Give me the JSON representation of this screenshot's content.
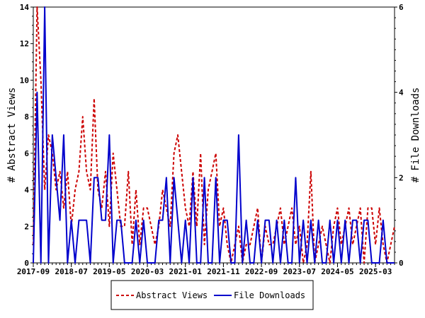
{
  "chart_data": {
    "type": "line",
    "x_labels": [
      "2017-09",
      "2018-07",
      "2019-05",
      "2020-03",
      "2021-01",
      "2021-11",
      "2022-09",
      "2023-07",
      "2024-05",
      "2025-03"
    ],
    "n_points": 96,
    "y_left": {
      "label": "# Abstract Views",
      "ylim": [
        0,
        14
      ],
      "ticks": [
        0,
        2,
        4,
        6,
        8,
        10,
        12,
        14
      ]
    },
    "y_right": {
      "label": "# File Downloads",
      "ylim": [
        0,
        6
      ],
      "ticks": [
        0,
        2,
        4,
        6
      ]
    },
    "grid": false,
    "legend_placement": "bottom",
    "series": [
      {
        "name": "Abstract Views",
        "axis": "left",
        "color": "#cc0000",
        "dash": true,
        "values": [
          1,
          14,
          10,
          4,
          7,
          6,
          4,
          5,
          3,
          5,
          2,
          4,
          5,
          8,
          5,
          4,
          9,
          4,
          3,
          5,
          2,
          6,
          4,
          2,
          2,
          5,
          1,
          4,
          1,
          3,
          3,
          2,
          1,
          2,
          4,
          3,
          2,
          6,
          7,
          5,
          3,
          2,
          5,
          2,
          6,
          1,
          4,
          5,
          6,
          2,
          3,
          1,
          0,
          1,
          2,
          0,
          1,
          1,
          2,
          3,
          0,
          2,
          1,
          1,
          2,
          3,
          1,
          2,
          3,
          1,
          2,
          0,
          1,
          5,
          0,
          1,
          2,
          1,
          0,
          2,
          3,
          1,
          2,
          3,
          1,
          2,
          3,
          0,
          3,
          3,
          1,
          3,
          1,
          0,
          1,
          2
        ]
      },
      {
        "name": "File Downloads",
        "axis": "right",
        "color": "#0000cc",
        "dash": false,
        "values": [
          0,
          4,
          0,
          6,
          0,
          3,
          2,
          1,
          3,
          0,
          1,
          0,
          1,
          1,
          1,
          0,
          2,
          2,
          1,
          1,
          3,
          0,
          1,
          1,
          0,
          0,
          0,
          1,
          0,
          1,
          0,
          0,
          0,
          1,
          1,
          2,
          0,
          2,
          1,
          0,
          1,
          0,
          2,
          0,
          0,
          2,
          0,
          0,
          2,
          0,
          1,
          1,
          0,
          0,
          3,
          0,
          1,
          0,
          0,
          1,
          0,
          1,
          1,
          0,
          1,
          0,
          1,
          0,
          0,
          2,
          0,
          1,
          0,
          1,
          0,
          1,
          0,
          0,
          1,
          0,
          1,
          0,
          1,
          0,
          1,
          1,
          0,
          1,
          1,
          0,
          0,
          0,
          1,
          0,
          0,
          0
        ]
      }
    ]
  }
}
